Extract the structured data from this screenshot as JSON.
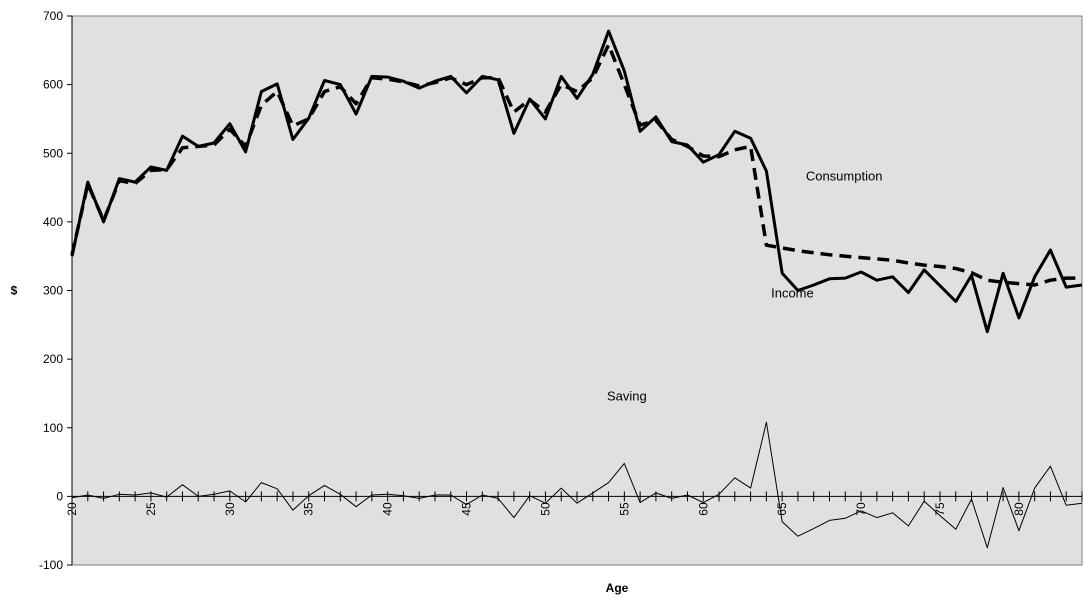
{
  "chart_data": {
    "type": "line",
    "xlabel": "Age",
    "ylabel": "$",
    "xlim": [
      20,
      84
    ],
    "ylim": [
      -100,
      700
    ],
    "yticks": [
      -100,
      0,
      100,
      200,
      300,
      400,
      500,
      600,
      700
    ],
    "xticks": [
      20,
      25,
      30,
      35,
      40,
      45,
      50,
      55,
      60,
      65,
      70,
      75,
      80
    ],
    "xtick_labels": [
      "20",
      "25",
      "30",
      "35",
      "40",
      "45",
      "50",
      "55",
      "60",
      "65",
      "70",
      "75",
      "80"
    ],
    "grid": false,
    "background": "#e0e0e0",
    "x": [
      20,
      21,
      22,
      23,
      24,
      25,
      26,
      27,
      28,
      29,
      30,
      31,
      32,
      33,
      34,
      35,
      36,
      37,
      38,
      39,
      40,
      41,
      42,
      43,
      44,
      45,
      46,
      47,
      48,
      49,
      50,
      51,
      52,
      53,
      54,
      55,
      56,
      57,
      58,
      59,
      60,
      61,
      62,
      63,
      64,
      65,
      66,
      67,
      68,
      69,
      70,
      71,
      72,
      73,
      74,
      75,
      76,
      77,
      78,
      79,
      80,
      81,
      82,
      83,
      84
    ],
    "series": [
      {
        "name": "Income",
        "style": "solid-thick",
        "color": "#000000",
        "values": [
          350,
          458,
          400,
          463,
          458,
          480,
          475,
          525,
          510,
          515,
          543,
          502,
          590,
          601,
          520,
          551,
          606,
          600,
          557,
          612,
          611,
          605,
          595,
          605,
          612,
          588,
          612,
          607,
          529,
          579,
          550,
          612,
          580,
          615,
          678,
          620,
          532,
          553,
          517,
          512,
          487,
          498,
          532,
          522,
          474,
          325,
          300,
          308,
          317,
          318,
          327,
          315,
          320,
          297,
          330,
          307,
          284,
          322,
          240,
          325,
          260,
          320,
          359,
          305,
          308
        ]
      },
      {
        "name": "Consumption",
        "style": "dashed-thick",
        "color": "#000000",
        "values": [
          352,
          455,
          402,
          460,
          456,
          475,
          476,
          508,
          510,
          512,
          535,
          510,
          570,
          590,
          540,
          550,
          590,
          597,
          572,
          610,
          608,
          604,
          598,
          603,
          610,
          600,
          610,
          610,
          560,
          578,
          560,
          600,
          590,
          610,
          658,
          600,
          541,
          548,
          520,
          510,
          496,
          495,
          505,
          510,
          366,
          362,
          358,
          355,
          352,
          350,
          348,
          346,
          344,
          340,
          337,
          335,
          332,
          326,
          315,
          312,
          310,
          308,
          315,
          318,
          318
        ]
      },
      {
        "name": "Saving",
        "style": "solid-thin",
        "color": "#000000",
        "values": [
          -2,
          2,
          -3,
          3,
          2,
          5,
          -1,
          17,
          0,
          3,
          8,
          -8,
          20,
          11,
          -20,
          1,
          16,
          3,
          -15,
          2,
          3,
          1,
          -3,
          2,
          2,
          -12,
          2,
          -3,
          -31,
          1,
          -10,
          12,
          -10,
          5,
          20,
          48,
          -9,
          5,
          -3,
          2,
          -9,
          3,
          27,
          12,
          108,
          -37,
          -58,
          -47,
          -35,
          -32,
          -21,
          -31,
          -24,
          -43,
          -7,
          -28,
          -48,
          -4,
          -75,
          13,
          -50,
          12,
          44,
          -13,
          -10
        ]
      }
    ],
    "annotations": [
      {
        "text": "Consumption",
        "x": 66.5,
        "y": 460
      },
      {
        "text": "Income",
        "x": 64.3,
        "y": 290
      },
      {
        "text": "Saving",
        "x": 53.9,
        "y": 140
      }
    ]
  }
}
